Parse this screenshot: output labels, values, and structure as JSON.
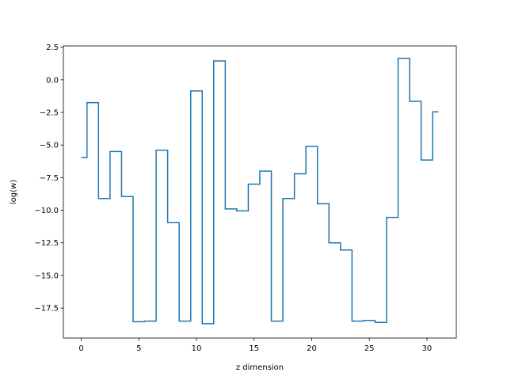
{
  "chart_data": {
    "type": "line",
    "drawstyle": "steps-mid",
    "xlabel": "z dimension",
    "ylabel": "log(w)",
    "xlim": [
      -1.55,
      32.55
    ],
    "ylim": [
      -19.8,
      2.6
    ],
    "xticks": [
      0,
      5,
      10,
      15,
      20,
      25,
      30
    ],
    "yticks": [
      2.5,
      0.0,
      -2.5,
      -5.0,
      -7.5,
      -10.0,
      -12.5,
      -15.0,
      -17.5
    ],
    "xtick_labels": [
      "0",
      "5",
      "10",
      "15",
      "20",
      "25",
      "30"
    ],
    "ytick_labels": [
      "2.5",
      "0.0",
      "−2.5",
      "−5.0",
      "−7.5",
      "−10.0",
      "−12.5",
      "−15.0",
      "−17.5"
    ],
    "grid": false,
    "series": [
      {
        "color": "#1f77b4",
        "x": [
          0,
          1,
          2,
          3,
          4,
          5,
          6,
          7,
          8,
          9,
          10,
          11,
          12,
          13,
          14,
          15,
          16,
          17,
          18,
          19,
          20,
          21,
          22,
          23,
          24,
          25,
          26,
          27,
          28,
          29,
          30,
          31
        ],
        "y": [
          -5.95,
          -1.75,
          -9.1,
          -5.5,
          -8.95,
          -18.55,
          -18.5,
          -5.4,
          -10.95,
          -18.5,
          -0.85,
          -18.7,
          1.45,
          -9.9,
          -10.05,
          -8.0,
          -7.0,
          -18.5,
          -9.1,
          -7.2,
          -5.1,
          -9.5,
          -12.5,
          -13.05,
          -18.5,
          -18.45,
          -18.6,
          -10.55,
          1.65,
          -1.65,
          -6.15,
          -2.45
        ]
      }
    ]
  }
}
